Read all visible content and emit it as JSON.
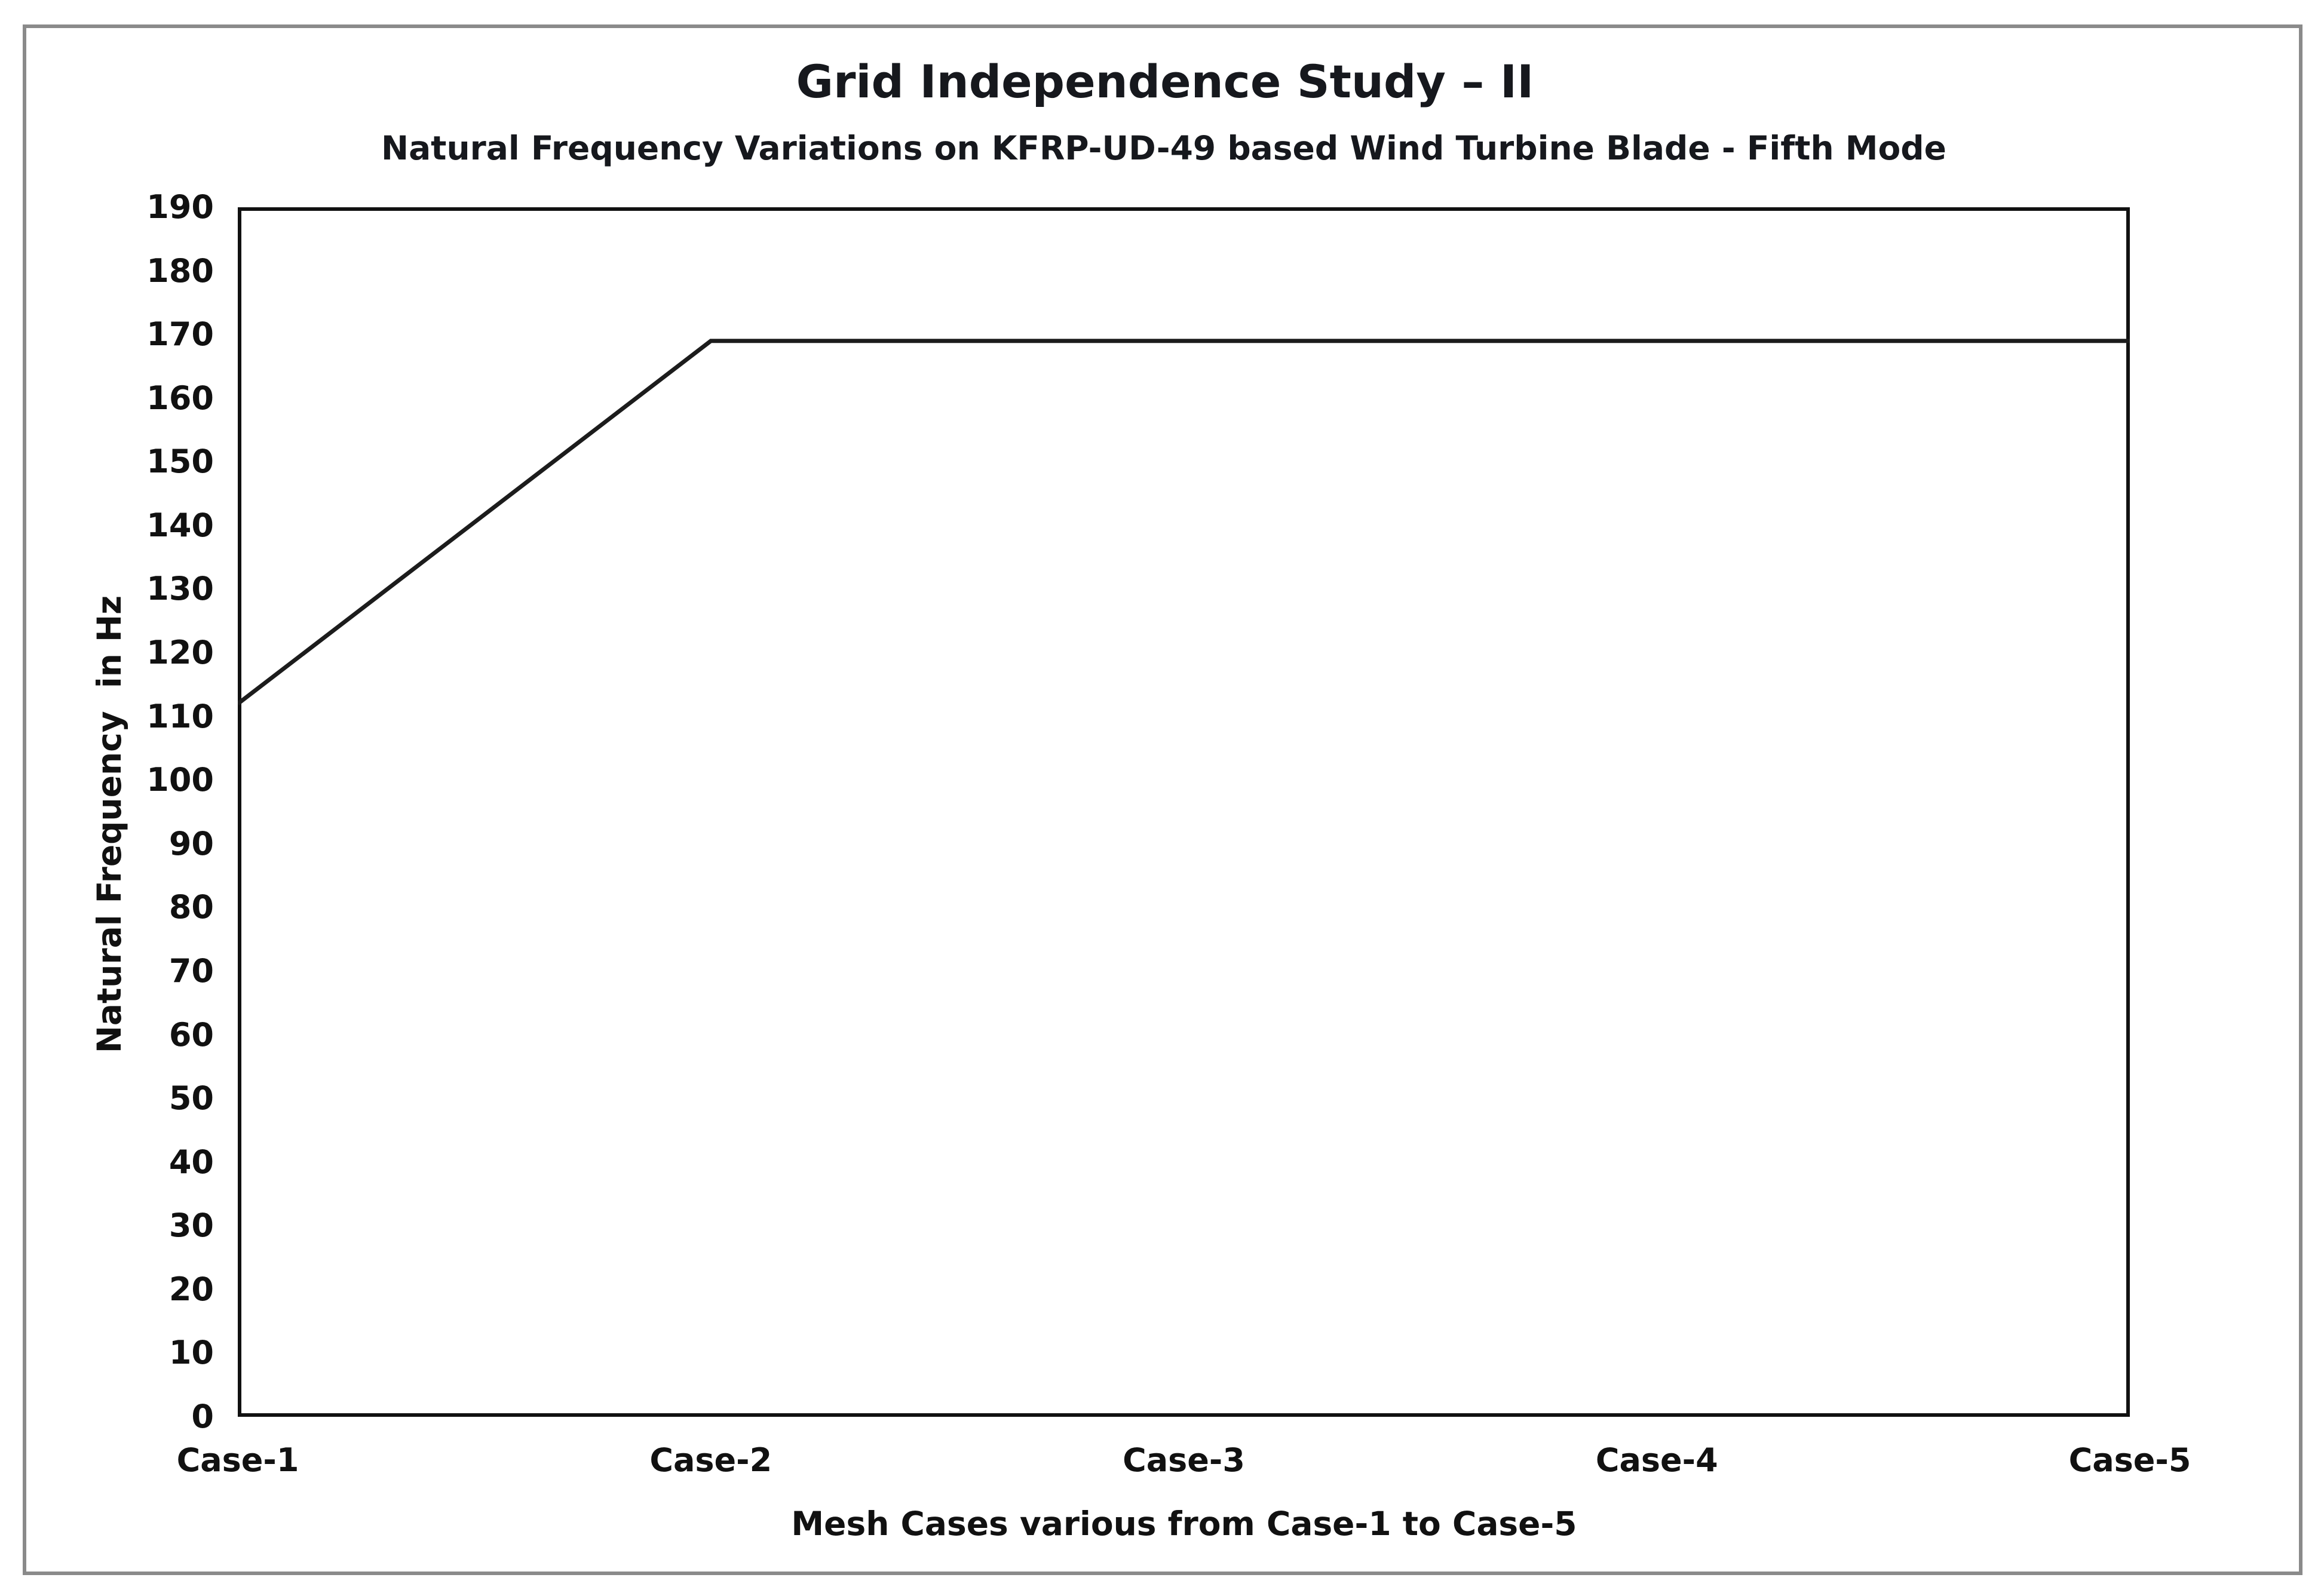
{
  "page": {
    "background": "#ffffff",
    "figure_border_color": "#8a8a8a"
  },
  "chart_data": {
    "type": "line",
    "title": "Grid Independence Study – II",
    "subtitle": "Natural Frequency Variations on KFRP-UD-49 based Wind Turbine Blade - Fifth Mode",
    "xlabel": "Mesh Cases various from Case-1 to Case-5",
    "ylabel": "Natural Frequency  in Hz",
    "categories": [
      "Case-1",
      "Case-2",
      "Case-3",
      "Case-4",
      "Case-5"
    ],
    "values": [
      112,
      169,
      169,
      169,
      169
    ],
    "ylim": [
      0,
      190
    ],
    "yticks": [
      0,
      10,
      20,
      30,
      40,
      50,
      60,
      70,
      80,
      90,
      100,
      110,
      120,
      130,
      140,
      150,
      160,
      170,
      180,
      190
    ],
    "grid": false,
    "legend": "none",
    "tick_marks": false,
    "line_color": "#1c1c1c",
    "axis_color": "#111111",
    "text_color": "#111111"
  }
}
